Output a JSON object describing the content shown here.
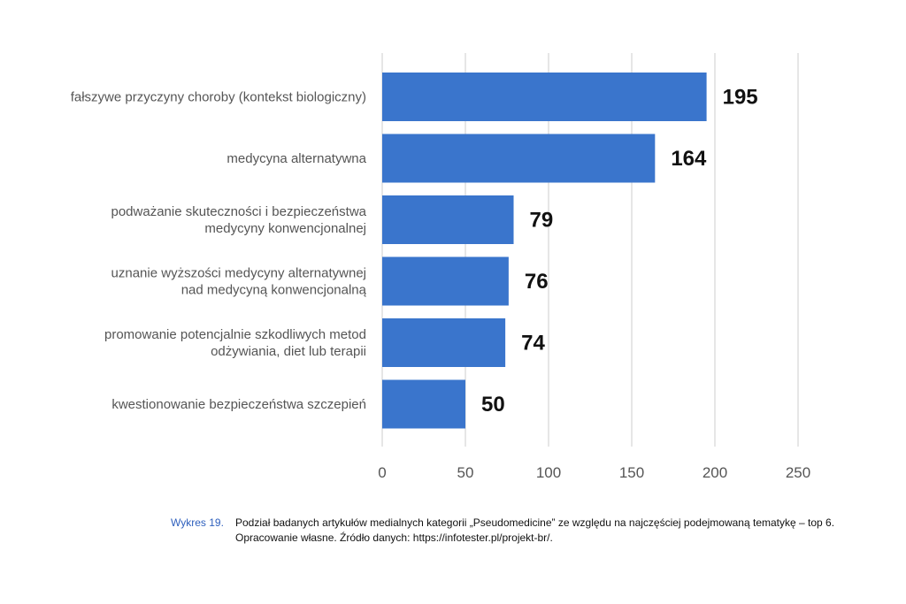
{
  "chart_data": {
    "type": "bar",
    "orientation": "horizontal",
    "categories": [
      [
        "fałszywe przyczyny choroby (kontekst biologiczny)"
      ],
      [
        "medycyna alternatywna"
      ],
      [
        "podważanie skuteczności i bezpieczeństwa",
        "medycyny konwencjonalnej"
      ],
      [
        "uznanie wyższości medycyny alternatywnej",
        "nad medycyną konwencjonalną"
      ],
      [
        "promowanie potencjalnie szkodliwych metod",
        "odżywiania, diet lub terapii"
      ],
      [
        "kwestionowanie bezpieczeństwa szczepień"
      ]
    ],
    "values": [
      195,
      164,
      79,
      76,
      74,
      50
    ],
    "value_labels": [
      "195",
      "164",
      "79",
      "76",
      "74",
      "50"
    ],
    "xticks": [
      0,
      50,
      100,
      150,
      200,
      250
    ],
    "xtick_labels": [
      "0",
      "50",
      "100",
      "150",
      "200",
      "250"
    ],
    "xlim": [
      0,
      250
    ],
    "grid": true,
    "bar_color": "#3a75cc",
    "grid_color": "#dddddd"
  },
  "caption": {
    "number": "Wykres 19.",
    "text": "Podział badanych artykułów medialnych kategorii „Pseudomedicine” ze względu na najczęściej podejmowaną tematykę – top 6. Opracowanie własne. Źródło danych: https://infotester.pl/projekt-br/.",
    "number_color": "#2e5fbd"
  }
}
